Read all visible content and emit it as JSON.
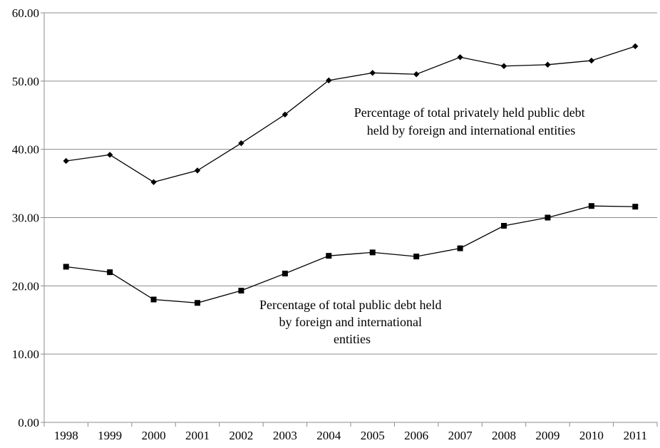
{
  "chart_data": {
    "type": "line",
    "title": "",
    "xlabel": "",
    "ylabel": "",
    "categories": [
      "1998",
      "1999",
      "2000",
      "2001",
      "2002",
      "2003",
      "2004",
      "2005",
      "2006",
      "2007",
      "2008",
      "2009",
      "2010",
      "2011"
    ],
    "ylim": [
      0,
      60
    ],
    "yticks": [
      "0.00",
      "10.00",
      "20.00",
      "30.00",
      "40.00",
      "50.00",
      "60.00"
    ],
    "grid": true,
    "legend": "none",
    "series": [
      {
        "marker": "diamond",
        "values": [
          38.3,
          39.2,
          35.2,
          36.9,
          40.9,
          45.1,
          50.1,
          51.2,
          51.0,
          53.5,
          52.2,
          52.4,
          53.0,
          55.1
        ]
      },
      {
        "marker": "square",
        "values": [
          22.8,
          22.0,
          18.0,
          17.5,
          19.3,
          21.8,
          24.4,
          24.9,
          24.3,
          25.5,
          28.8,
          30.0,
          31.7,
          31.6
        ]
      }
    ],
    "annotations": [
      {
        "series": 0,
        "lines": [
          "Percentage of total privately held public debt",
          "held by foreign and international entities"
        ]
      },
      {
        "series": 1,
        "lines": [
          "Percentage of total public debt held",
          "by foreign and international",
          "entities"
        ]
      }
    ]
  }
}
